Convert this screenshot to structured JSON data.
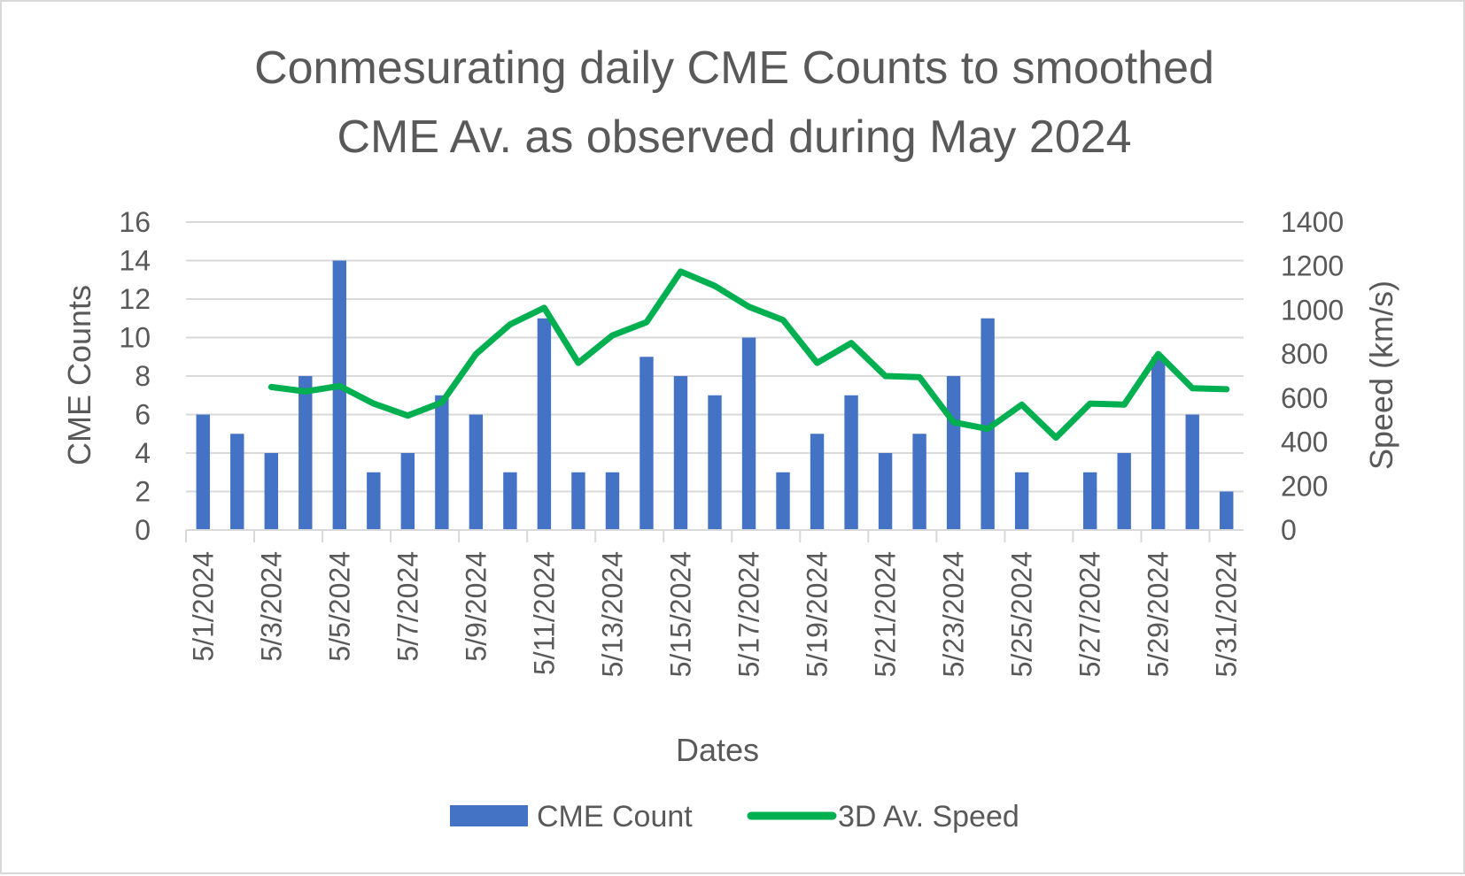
{
  "chart_data": {
    "type": "bar+line",
    "title_lines": [
      "Conmesurating daily CME Counts to smoothed",
      "CME Av. as observed during May 2024"
    ],
    "xlabel": "Dates",
    "ylabel_left": "CME Counts",
    "ylabel_right": "Speed (km/s)",
    "ylim_left": [
      0,
      16
    ],
    "ylim_right": [
      0,
      1400
    ],
    "yticks_left": [
      "0",
      "2",
      "4",
      "6",
      "8",
      "10",
      "12",
      "14",
      "16"
    ],
    "yticks_right": [
      "0",
      "200",
      "400",
      "600",
      "800",
      "1000",
      "1200",
      "1400"
    ],
    "categories": [
      "5/1/2024",
      "5/2/2024",
      "5/3/2024",
      "5/4/2024",
      "5/5/2024",
      "5/6/2024",
      "5/7/2024",
      "5/8/2024",
      "5/9/2024",
      "5/10/2024",
      "5/11/2024",
      "5/12/2024",
      "5/13/2024",
      "5/14/2024",
      "5/15/2024",
      "5/16/2024",
      "5/17/2024",
      "5/18/2024",
      "5/19/2024",
      "5/20/2024",
      "5/21/2024",
      "5/22/2024",
      "5/23/2024",
      "5/24/2024",
      "5/25/2024",
      "5/26/2024",
      "5/27/2024",
      "5/28/2024",
      "5/29/2024",
      "5/30/2024",
      "5/31/2024"
    ],
    "x_tick_labels": [
      "5/1/2024",
      "5/3/2024",
      "5/5/2024",
      "5/7/2024",
      "5/9/2024",
      "5/11/2024",
      "5/13/2024",
      "5/15/2024",
      "5/17/2024",
      "5/19/2024",
      "5/21/2024",
      "5/23/2024",
      "5/25/2024",
      "5/27/2024",
      "5/29/2024",
      "5/31/2024"
    ],
    "series": [
      {
        "name": "CME Count",
        "type": "bar",
        "axis": "left",
        "color": "#4472c4",
        "values": [
          6,
          5,
          4,
          8,
          14,
          3,
          4,
          7,
          6,
          3,
          11,
          3,
          3,
          9,
          8,
          7,
          10,
          3,
          5,
          7,
          4,
          5,
          8,
          11,
          3,
          0,
          3,
          4,
          9,
          6,
          2
        ]
      },
      {
        "name": "3D Av. Speed",
        "type": "line",
        "axis": "right",
        "color": "#00b050",
        "values": [
          null,
          null,
          650,
          630,
          655,
          575,
          520,
          580,
          800,
          935,
          1010,
          760,
          885,
          945,
          1175,
          1110,
          1015,
          955,
          760,
          850,
          700,
          695,
          490,
          460,
          570,
          420,
          575,
          570,
          800,
          645,
          640
        ]
      }
    ],
    "legend_position": "bottom"
  }
}
